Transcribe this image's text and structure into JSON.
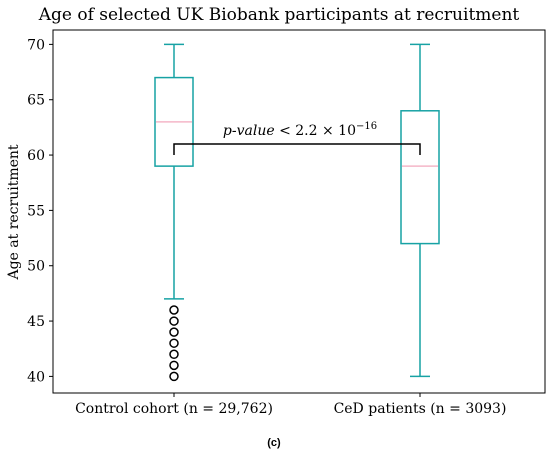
{
  "chart_data": {
    "type": "box",
    "title": "Age of selected UK Biobank participants at recruitment",
    "xlabel": "",
    "ylabel": "Age at recruitment",
    "ylim": [
      38.5,
      71.3
    ],
    "yticks": [
      40,
      45,
      50,
      55,
      60,
      65,
      70
    ],
    "categories": [
      "Control cohort (n = 29,762)",
      "CeD patients (n = 3093)"
    ],
    "boxes": [
      {
        "whisker_low": 47,
        "q1": 59,
        "median": 63,
        "q3": 67,
        "whisker_high": 70,
        "outliers": [
          40,
          41,
          42,
          43,
          44,
          45,
          46
        ]
      },
      {
        "whisker_low": 40,
        "q1": 52,
        "median": 59,
        "q3": 64,
        "whisker_high": 70,
        "outliers": []
      }
    ],
    "annotation": {
      "base": "p-value",
      "relation": " < 2.2 × 10",
      "exponent": "−16",
      "bracket_y": 61,
      "bracket_tip_y": 60
    },
    "colors": {
      "box": "#17a2a4",
      "median": "#f4b6c8",
      "outlier": "#000000",
      "bracket": "#000000"
    },
    "grid": false
  },
  "figure": {
    "caption": "(c)"
  }
}
